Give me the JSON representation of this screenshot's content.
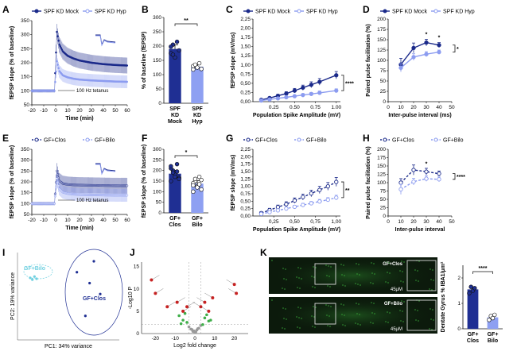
{
  "colors": {
    "dark": "#1b2a8a",
    "light": "#8c9cf0",
    "darkBar": "#1f2f93",
    "lightBar": "#8ea0f2",
    "green": "#3fae49",
    "red": "#cc2222",
    "gray": "#9a9a9a",
    "micro_bg": "#0c1a0c",
    "micro_fg": "#3aa83a"
  },
  "panels": [
    {
      "id": "A",
      "label": "A"
    },
    {
      "id": "B",
      "label": "B"
    },
    {
      "id": "C",
      "label": "C"
    },
    {
      "id": "D",
      "label": "D"
    },
    {
      "id": "E",
      "label": "E"
    },
    {
      "id": "F",
      "label": "F"
    },
    {
      "id": "G",
      "label": "G"
    },
    {
      "id": "H",
      "label": "H"
    },
    {
      "id": "I",
      "label": "I"
    },
    {
      "id": "J",
      "label": "J"
    },
    {
      "id": "K",
      "label": "K"
    }
  ],
  "chart_data": [
    {
      "panel": "A",
      "type": "line",
      "legend": [
        "SPF KD Mock",
        "SPF KD Hyp"
      ],
      "xlabel": "Time (min)",
      "ylabel": "fEPSP slope (% of baseline)",
      "xlim": [
        -20,
        60
      ],
      "ylim": [
        50,
        350
      ],
      "xticks": [
        -20,
        -10,
        0,
        10,
        20,
        30,
        40,
        50,
        60
      ],
      "yticks": [
        50,
        100,
        150,
        200,
        250,
        300,
        350
      ],
      "annotation": "100 Hz tetanus",
      "series": [
        {
          "name": "SPF KD Mock",
          "x": [
            -20,
            -15,
            -10,
            -5,
            -1,
            1,
            3,
            6,
            10,
            15,
            20,
            30,
            40,
            50,
            60
          ],
          "y": [
            100,
            100,
            100,
            100,
            100,
            310,
            265,
            240,
            225,
            215,
            208,
            200,
            195,
            192,
            190
          ]
        },
        {
          "name": "SPF KD Hyp",
          "x": [
            -20,
            -15,
            -10,
            -5,
            -1,
            1,
            3,
            6,
            10,
            15,
            20,
            30,
            40,
            50,
            60
          ],
          "y": [
            100,
            100,
            100,
            100,
            100,
            205,
            170,
            155,
            148,
            143,
            140,
            137,
            135,
            133,
            132
          ]
        }
      ]
    },
    {
      "panel": "B",
      "type": "bar",
      "ylabel": "% of baseline (fEPSP)",
      "ylim": [
        0,
        300
      ],
      "yticks": [
        0,
        50,
        100,
        150,
        200,
        250,
        300
      ],
      "categories": [
        "SPF KD Mock",
        "SPF KD Hyp"
      ],
      "category_lines": [
        [
          "SPF",
          "KD",
          "Mock"
        ],
        [
          "SPF",
          "KD",
          "Hyp"
        ]
      ],
      "values": [
        190,
        128
      ],
      "errors": [
        14,
        7
      ],
      "points": [
        [
          175,
          205,
          160,
          215,
          185,
          198,
          170
        ],
        [
          118,
          132,
          125,
          140,
          120,
          130,
          135
        ]
      ],
      "significance": "**"
    },
    {
      "panel": "C",
      "type": "line",
      "legend": [
        "SPF KD Mock",
        "SPF KD Hyp"
      ],
      "xlabel": "Population Spike Amplitude (mV)",
      "ylabel": "fEPSP slope (mV/ms)",
      "xlim": [
        0,
        1.05
      ],
      "ylim": [
        0,
        2.25
      ],
      "xticks": [
        "0.25",
        "0.50",
        "0.75",
        "1.00"
      ],
      "yticks": [
        "0,00",
        "0,25",
        "0,50",
        "0,75",
        "1,00",
        "1,25",
        "1,50",
        "1,75",
        "2,00",
        "2,25"
      ],
      "significance": "****",
      "series": [
        {
          "name": "SPF KD Mock",
          "x": [
            0.1,
            0.2,
            0.3,
            0.4,
            0.5,
            0.6,
            0.7,
            0.8,
            1.0
          ],
          "y": [
            0.05,
            0.1,
            0.16,
            0.22,
            0.3,
            0.38,
            0.46,
            0.54,
            0.72
          ],
          "err": [
            0.02,
            0.03,
            0.04,
            0.05,
            0.06,
            0.07,
            0.08,
            0.09,
            0.1
          ]
        },
        {
          "name": "SPF KD Hyp",
          "x": [
            0.1,
            0.2,
            0.3,
            0.4,
            0.5,
            0.6,
            0.7,
            0.8,
            1.0
          ],
          "y": [
            0.03,
            0.06,
            0.09,
            0.12,
            0.15,
            0.18,
            0.21,
            0.24,
            0.3
          ],
          "err": [
            0.01,
            0.02,
            0.02,
            0.03,
            0.03,
            0.04,
            0.04,
            0.05,
            0.05
          ]
        }
      ]
    },
    {
      "panel": "D",
      "type": "line",
      "legend": [
        "SPF KD Mock",
        "SPF KD Hyp"
      ],
      "xlabel": "Inter-pulse interval (ms)",
      "ylabel": "Paired pulse facilitation (%)",
      "xlim": [
        0,
        50
      ],
      "ylim": [
        0,
        200
      ],
      "xticks": [
        0,
        10,
        20,
        30,
        40,
        50
      ],
      "yticks": [
        0,
        25,
        50,
        75,
        100,
        125,
        150,
        175,
        200
      ],
      "stars": [
        "*",
        "*"
      ],
      "significance": "*",
      "series": [
        {
          "name": "SPF KD Mock",
          "x": [
            10,
            20,
            30,
            40
          ],
          "y": [
            90,
            130,
            143,
            137
          ],
          "err": [
            15,
            12,
            8,
            6
          ]
        },
        {
          "name": "SPF KD Hyp",
          "x": [
            10,
            20,
            30,
            40
          ],
          "y": [
            82,
            108,
            115,
            120
          ],
          "err": [
            10,
            8,
            6,
            5
          ]
        }
      ]
    },
    {
      "panel": "E",
      "type": "line",
      "legend": [
        "GF+Clos",
        "GF+Bilo"
      ],
      "xlabel": "Time (min)",
      "ylabel": "fEPSP slope (% of baseline)",
      "xlim": [
        -20,
        60
      ],
      "ylim": [
        50,
        350
      ],
      "xticks": [
        -20,
        -10,
        0,
        10,
        20,
        30,
        40,
        50,
        60
      ],
      "yticks": [
        50,
        100,
        150,
        200,
        250,
        300,
        350
      ],
      "annotation": "100 Hz tetanus",
      "series": [
        {
          "name": "GF+Clos",
          "x": [
            -20,
            -15,
            -10,
            -5,
            -1,
            1,
            3,
            6,
            10,
            15,
            20,
            30,
            40,
            50,
            60
          ],
          "y": [
            100,
            100,
            100,
            100,
            100,
            250,
            205,
            192,
            188,
            186,
            185,
            184,
            183,
            182,
            182
          ]
        },
        {
          "name": "GF+Bilo",
          "x": [
            -20,
            -15,
            -10,
            -5,
            -1,
            1,
            3,
            6,
            10,
            15,
            20,
            30,
            40,
            50,
            60
          ],
          "y": [
            100,
            100,
            100,
            100,
            100,
            215,
            168,
            152,
            146,
            143,
            141,
            140,
            139,
            138,
            138
          ]
        }
      ]
    },
    {
      "panel": "F",
      "type": "bar",
      "ylabel": "fEPSP slope (% of baseline)",
      "ylim": [
        0,
        300
      ],
      "yticks": [
        0,
        50,
        100,
        150,
        200,
        250,
        300
      ],
      "categories": [
        "GF+ Clos",
        "GF+ Bilo"
      ],
      "category_lines": [
        [
          "GF+",
          "Clos"
        ],
        [
          "GF+",
          "Bilo"
        ]
      ],
      "values": [
        185,
        138
      ],
      "errors": [
        16,
        14
      ],
      "points": [
        [
          150,
          200,
          180,
          230,
          165,
          210,
          190,
          170,
          195,
          160,
          220
        ],
        [
          100,
          150,
          125,
          170,
          110,
          140,
          160,
          120,
          135,
          155,
          130
        ]
      ],
      "significance": "*"
    },
    {
      "panel": "G",
      "type": "line",
      "legend": [
        "GF+Clos",
        "GF+Bilo"
      ],
      "xlabel": "Population Spike Amplitude (mV)",
      "ylabel": "fEPSP slope (mV/ms)",
      "xlim": [
        0,
        1.05
      ],
      "ylim": [
        0,
        2.25
      ],
      "xticks": [
        "0,25",
        "0,50",
        "0,75",
        "1,00"
      ],
      "yticks": [
        "0,00",
        "0,25",
        "0,50",
        "0,75",
        "1,00",
        "1,25",
        "1,50",
        "1,75",
        "2,00",
        "2,25"
      ],
      "significance": "**",
      "series": [
        {
          "name": "GF+Clos",
          "x": [
            0.1,
            0.2,
            0.3,
            0.4,
            0.5,
            0.6,
            0.7,
            0.8,
            0.9,
            1.0
          ],
          "y": [
            0.1,
            0.2,
            0.3,
            0.4,
            0.52,
            0.64,
            0.76,
            0.88,
            1.0,
            1.15
          ],
          "err": [
            0.05,
            0.06,
            0.07,
            0.08,
            0.09,
            0.1,
            0.11,
            0.12,
            0.13,
            0.15
          ]
        },
        {
          "name": "GF+Bilo",
          "x": [
            0.1,
            0.2,
            0.3,
            0.4,
            0.5,
            0.6,
            0.7,
            0.8,
            0.9,
            1.0
          ],
          "y": [
            0.07,
            0.13,
            0.19,
            0.25,
            0.31,
            0.37,
            0.43,
            0.49,
            0.55,
            0.62
          ],
          "err": [
            0.03,
            0.04,
            0.04,
            0.05,
            0.05,
            0.06,
            0.06,
            0.07,
            0.07,
            0.08
          ]
        }
      ]
    },
    {
      "panel": "H",
      "type": "line",
      "legend": [
        "GF+Clos",
        "GF+Bilo"
      ],
      "xlabel": "Inter-pulse interval",
      "ylabel": "Paired pulse facilitation (%)",
      "xlim": [
        0,
        50
      ],
      "ylim": [
        0,
        200
      ],
      "xticks": [
        0,
        10,
        20,
        30,
        40,
        50
      ],
      "yticks": [
        0,
        25,
        50,
        75,
        100,
        125,
        150,
        175,
        200
      ],
      "stars": [
        "*"
      ],
      "significance": "****",
      "series": [
        {
          "name": "GF+Clos",
          "x": [
            10,
            20,
            30,
            40
          ],
          "y": [
            100,
            138,
            133,
            127
          ],
          "err": [
            12,
            15,
            10,
            8
          ]
        },
        {
          "name": "GF+Bilo",
          "x": [
            10,
            20,
            30,
            40
          ],
          "y": [
            80,
            103,
            112,
            110
          ],
          "err": [
            15,
            10,
            8,
            7
          ]
        }
      ]
    },
    {
      "panel": "I",
      "type": "scatter",
      "xlabel": "PC1: 34% variance",
      "ylabel": "PC2: 19% variance",
      "groups": [
        {
          "name": "GF+Bilo",
          "x": [
            -0.9,
            -0.85,
            -0.8,
            -0.75
          ],
          "y": [
            0.42,
            0.38,
            0.45,
            0.4
          ]
        },
        {
          "name": "GF+Clos",
          "x": [
            0.2,
            0.5,
            0.75,
            0.4,
            0.6
          ],
          "y": [
            0.55,
            0.3,
            0.05,
            -0.45,
            0.8
          ]
        }
      ]
    },
    {
      "panel": "J",
      "type": "scatter",
      "xlabel": "Log2 fold change",
      "ylabel": "-Log10 P",
      "xticks": [
        -20,
        -10,
        0,
        10,
        20
      ],
      "yticks": [
        0,
        5,
        10,
        15
      ],
      "groups": [
        {
          "name": "ns",
          "x": [
            -2,
            -1,
            0,
            1,
            2,
            -3,
            3,
            0.5,
            -0.5,
            1.5,
            -1.5
          ],
          "y": [
            1,
            0.5,
            0.2,
            0.8,
            1.2,
            1.5,
            1.8,
            0.4,
            0.6,
            1.1,
            0.9
          ]
        },
        {
          "name": "fc",
          "x": [
            -6,
            -4,
            -8,
            5,
            7,
            4,
            -5,
            6,
            8,
            -7
          ],
          "y": [
            3,
            2.5,
            4,
            3.5,
            2.8,
            2,
            4.5,
            4.2,
            3,
            2.2
          ]
        },
        {
          "name": "sig",
          "x": [
            -22,
            -20,
            -14,
            -9,
            -6,
            -4,
            3,
            5,
            7,
            9,
            20,
            21
          ],
          "y": [
            12,
            9,
            6,
            7,
            5,
            6,
            6,
            7,
            5,
            8,
            11,
            9
          ]
        }
      ]
    },
    {
      "panel": "K",
      "type": "bar",
      "ylabel": "Dentate Gyrus % IBA1/μm²",
      "ylim": [
        0,
        2.5
      ],
      "yticks": [
        "0",
        "1",
        "2"
      ],
      "categories": [
        "GF+ Clos",
        "GF+ Bilo"
      ],
      "category_lines": [
        [
          "GF+",
          "Clos"
        ],
        [
          "GF+",
          "Bilo"
        ]
      ],
      "values": [
        1.55,
        0.45
      ],
      "errors": [
        0.1,
        0.08
      ],
      "points": [
        [
          1.4,
          1.65,
          1.5,
          1.6
        ],
        [
          0.35,
          0.5,
          0.42,
          0.55
        ]
      ],
      "significance": "****",
      "images": [
        {
          "label": "GF+Clos",
          "scale": "45μM"
        },
        {
          "label": "GF+Bilo",
          "scale": "45μM"
        }
      ]
    }
  ]
}
